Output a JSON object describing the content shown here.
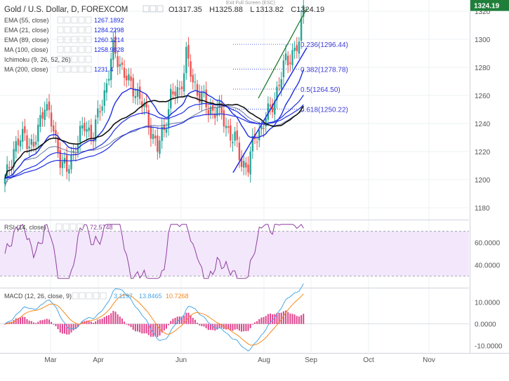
{
  "header": {
    "title": "Gold / U.S. Dollar, D, FOREXCOM",
    "ohlc": [
      {
        "label": "O",
        "value": "1317.35"
      },
      {
        "label": "H",
        "value": "1325.88"
      },
      {
        "label": "L",
        "value": "1313.82"
      },
      {
        "label": "C",
        "value": "1324.19"
      }
    ],
    "exit_fullscreen": "Exit Full Screen (ESC)"
  },
  "indicators": [
    {
      "label": "EMA (55, close)",
      "value": "1267.1892",
      "color": "#1e2ee0"
    },
    {
      "label": "EMA (21, close)",
      "value": "1284.2298",
      "color": "#1e2ee0"
    },
    {
      "label": "EMA (89, close)",
      "value": "1260.1214",
      "color": "#1e2ee0"
    },
    {
      "label": "MA (100, close)",
      "value": "1258.9828",
      "color": "#1e2ee0"
    },
    {
      "label": "Ichimoku (9, 26, 52, 26)",
      "value": "",
      "color": "#1e2ee0"
    },
    {
      "label": "MA (200, close)",
      "value": "1231.4",
      "color": "#1e2ee0"
    }
  ],
  "last_price": {
    "value": "1324.19",
    "color": "#1f7f3a"
  },
  "colors": {
    "up": "#26a69a",
    "down": "#ef5350",
    "grid": "#eef0f3",
    "blue": "#1e2ee0",
    "black": "#111111",
    "green": "#1f7a2e",
    "navy": "#5a6b9a",
    "rsi": "#8e3fa0",
    "rsi_band": "#f3e7fb",
    "macd": "#4aa7e8",
    "signal": "#f48a1f",
    "hist": "#e0448e"
  },
  "chart_data": {
    "type": "candlestick",
    "title": "Gold / U.S. Dollar, D, FOREXCOM",
    "price_axis": {
      "ticks": [
        1180,
        1200,
        1220,
        1240,
        1260,
        1280,
        1300,
        1320
      ],
      "ylim": [
        1172,
        1328
      ]
    },
    "time_axis": {
      "ticks": [
        "Mar",
        "Apr",
        "Jun",
        "Aug",
        "Sep",
        "Oct",
        "Nov"
      ]
    },
    "fibonacci": [
      {
        "label": "0.236(1296.44)",
        "level": 1296.44
      },
      {
        "label": "0.382(1278.78)",
        "level": 1278.78
      },
      {
        "label": "0.5(1264.50)",
        "level": 1264.5
      },
      {
        "label": "0.618(1250.22)",
        "level": 1250.22
      }
    ],
    "rsi": {
      "label": "RSI (14, close)",
      "value": "72.5748",
      "ticks": [
        "60.0000",
        "40.0000"
      ],
      "ylim": [
        21,
        79
      ],
      "bands": [
        70,
        30
      ]
    },
    "macd": {
      "label": "MACD (12, 26, close, 9)",
      "values": [
        "3.1197",
        "13.8465",
        "10.7268"
      ],
      "ticks": [
        "10.0000",
        "0.0000",
        "-10.0000"
      ],
      "ylim": [
        -13,
        16
      ]
    }
  }
}
